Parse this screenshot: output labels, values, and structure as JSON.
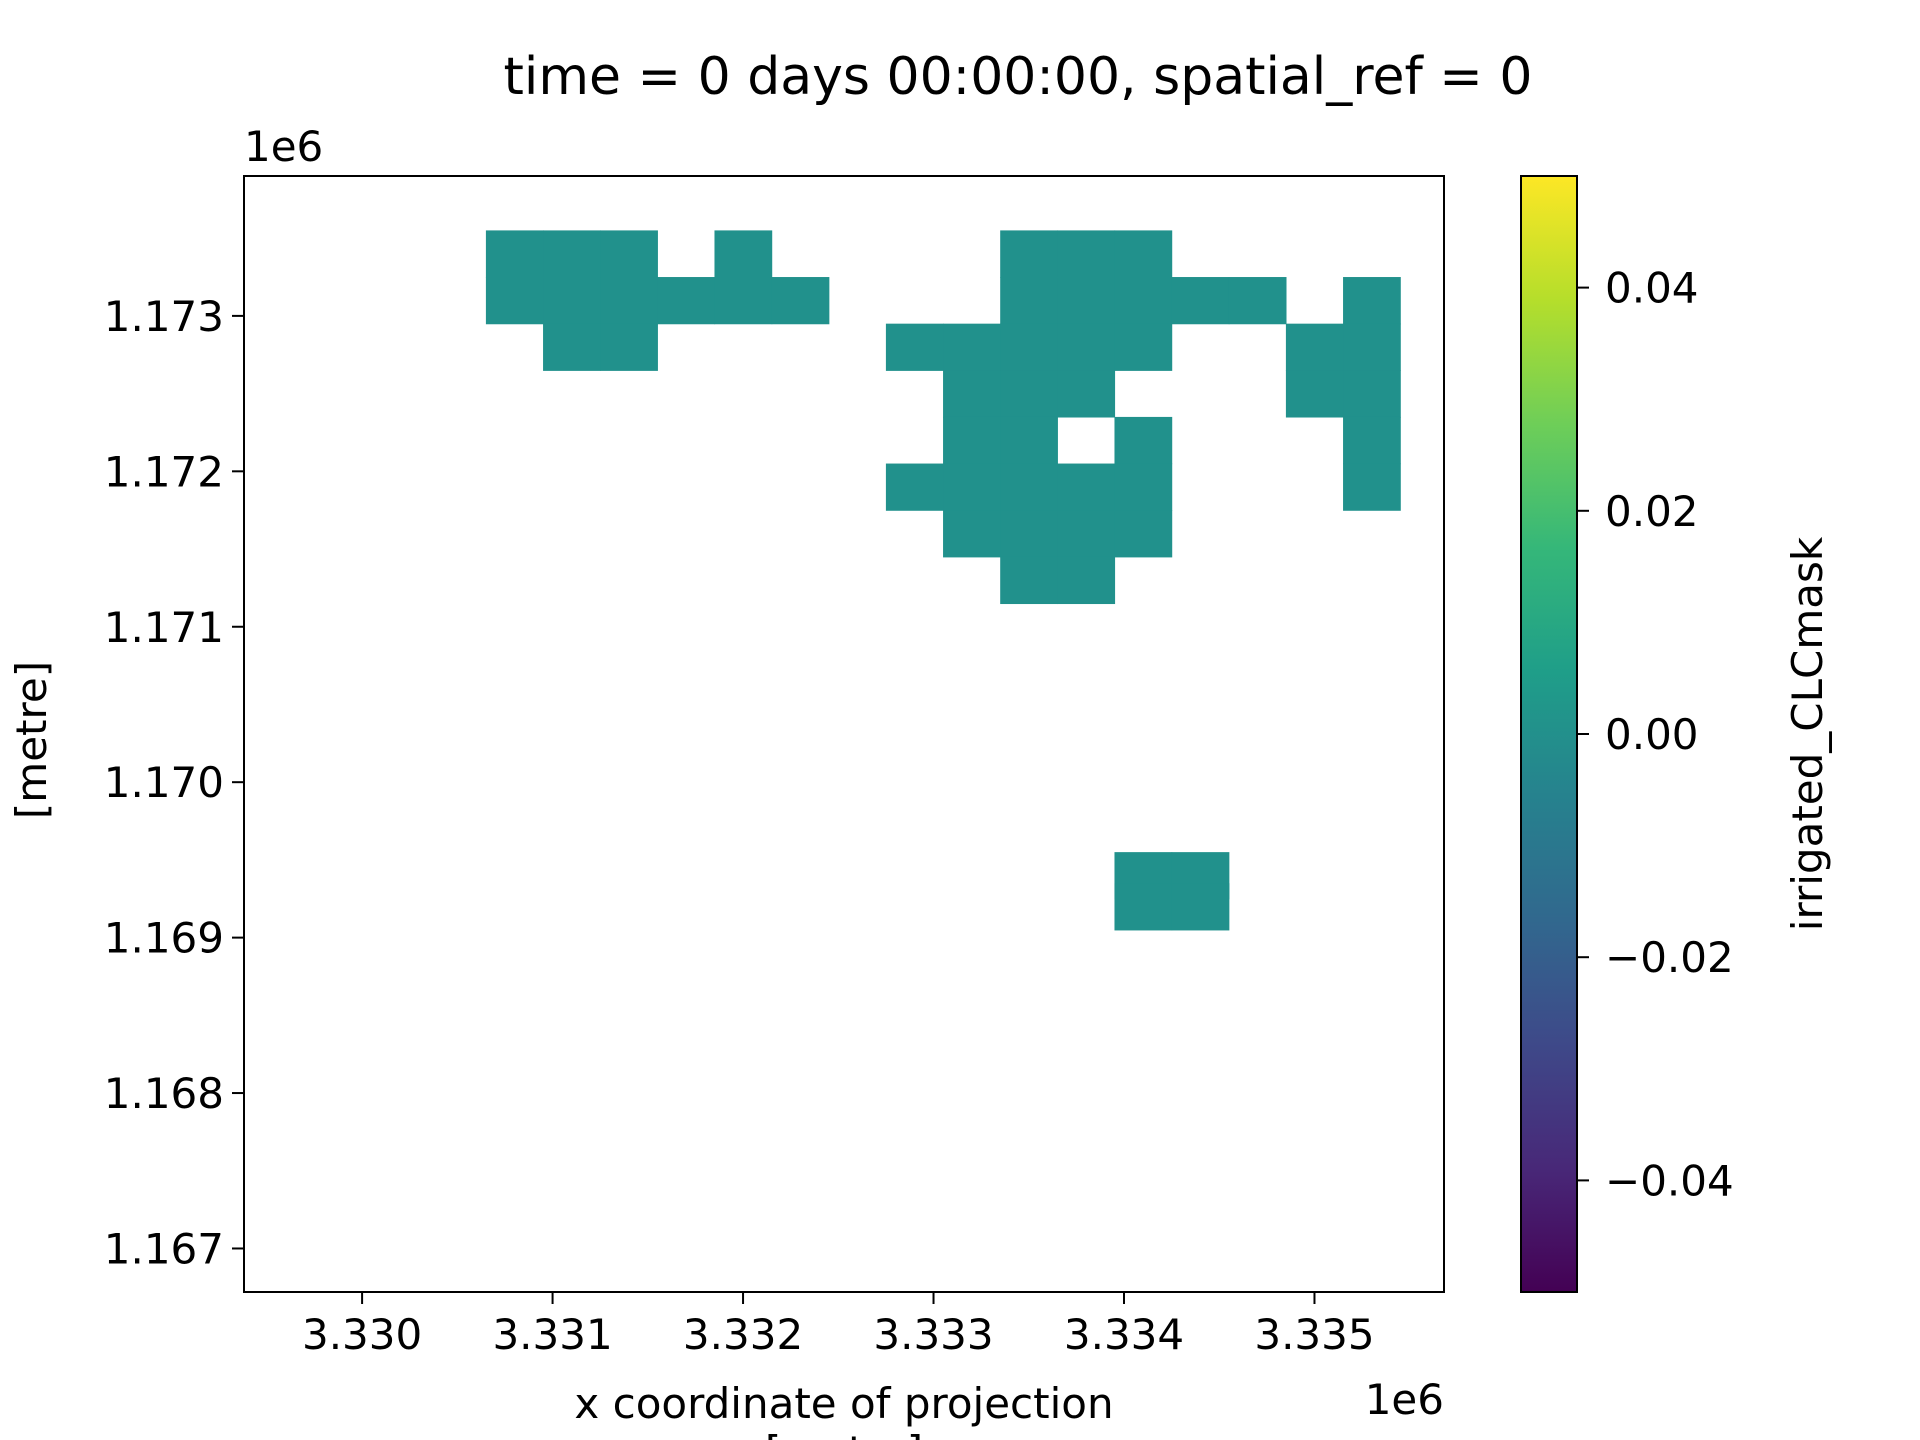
{
  "chart_data": {
    "type": "heatmap",
    "title": "time = 0 days 00:00:00, spatial_ref = 0",
    "xlabel_line1": "x coordinate of projection",
    "xlabel_line2": "[metre]",
    "ylabel": "[metre]",
    "x_offset_label": "1e6",
    "y_offset_label": "1e6",
    "xlim": [
      3.32938,
      3.33568
    ],
    "ylim": [
      1.16672,
      1.1739
    ],
    "x_ticks": [
      3.33,
      3.331,
      3.332,
      3.333,
      3.334,
      3.335
    ],
    "x_tick_labels": [
      "3.330",
      "3.331",
      "3.332",
      "3.333",
      "3.334",
      "3.335"
    ],
    "y_ticks": [
      1.167,
      1.168,
      1.169,
      1.17,
      1.171,
      1.172,
      1.173
    ],
    "y_tick_labels": [
      "1.167",
      "1.168",
      "1.169",
      "1.170",
      "1.171",
      "1.172",
      "1.173"
    ],
    "grid": false,
    "cell_color": "#21918c",
    "colorbar": {
      "label": "irrigated_CLCmask",
      "range": [
        -0.05,
        0.05
      ],
      "ticks": [
        0.04,
        0.02,
        0.0,
        -0.02,
        -0.04
      ],
      "tick_labels": [
        "0.04",
        "0.02",
        "0.00",
        "−0.02",
        "−0.04"
      ],
      "colormap": "viridis",
      "stops": [
        "#440154",
        "#482878",
        "#3e4989",
        "#31688e",
        "#26828e",
        "#1f9e89",
        "#35b779",
        "#6ece58",
        "#b5de2b",
        "#fde725"
      ]
    },
    "cell_size": [
      0.0003,
      0.0003
    ],
    "cells_value": 0.0,
    "cells": [
      [
        3.3308,
        1.1734
      ],
      [
        3.3311,
        1.1734
      ],
      [
        3.3314,
        1.1734
      ],
      [
        3.332,
        1.1734
      ],
      [
        3.3308,
        1.1731
      ],
      [
        3.3311,
        1.1731
      ],
      [
        3.3314,
        1.1731
      ],
      [
        3.3317,
        1.1731
      ],
      [
        3.332,
        1.1731
      ],
      [
        3.3323,
        1.1731
      ],
      [
        3.3311,
        1.1728
      ],
      [
        3.3314,
        1.1728
      ],
      [
        3.3335,
        1.1734
      ],
      [
        3.3338,
        1.1734
      ],
      [
        3.3341,
        1.1734
      ],
      [
        3.3335,
        1.1731
      ],
      [
        3.3338,
        1.1731
      ],
      [
        3.3341,
        1.1731
      ],
      [
        3.3344,
        1.1731
      ],
      [
        3.3347,
        1.1731
      ],
      [
        3.3353,
        1.1731
      ],
      [
        3.3329,
        1.1728
      ],
      [
        3.3332,
        1.1728
      ],
      [
        3.3335,
        1.1728
      ],
      [
        3.3338,
        1.1728
      ],
      [
        3.3341,
        1.1728
      ],
      [
        3.335,
        1.1728
      ],
      [
        3.3353,
        1.1728
      ],
      [
        3.3332,
        1.1725
      ],
      [
        3.3335,
        1.1725
      ],
      [
        3.3338,
        1.1725
      ],
      [
        3.335,
        1.1725
      ],
      [
        3.3353,
        1.1725
      ],
      [
        3.3332,
        1.1722
      ],
      [
        3.3335,
        1.1722
      ],
      [
        3.3341,
        1.1722
      ],
      [
        3.3353,
        1.1722
      ],
      [
        3.3329,
        1.1719
      ],
      [
        3.3332,
        1.1719
      ],
      [
        3.3335,
        1.1719
      ],
      [
        3.3338,
        1.1719
      ],
      [
        3.3341,
        1.1719
      ],
      [
        3.3353,
        1.1719
      ],
      [
        3.3332,
        1.1716
      ],
      [
        3.3335,
        1.1716
      ],
      [
        3.3338,
        1.1716
      ],
      [
        3.3341,
        1.1716
      ],
      [
        3.3335,
        1.1713
      ],
      [
        3.3338,
        1.1713
      ],
      [
        3.3341,
        1.1694
      ],
      [
        3.3344,
        1.1694
      ],
      [
        3.3341,
        1.1692
      ],
      [
        3.3344,
        1.1692
      ]
    ]
  }
}
